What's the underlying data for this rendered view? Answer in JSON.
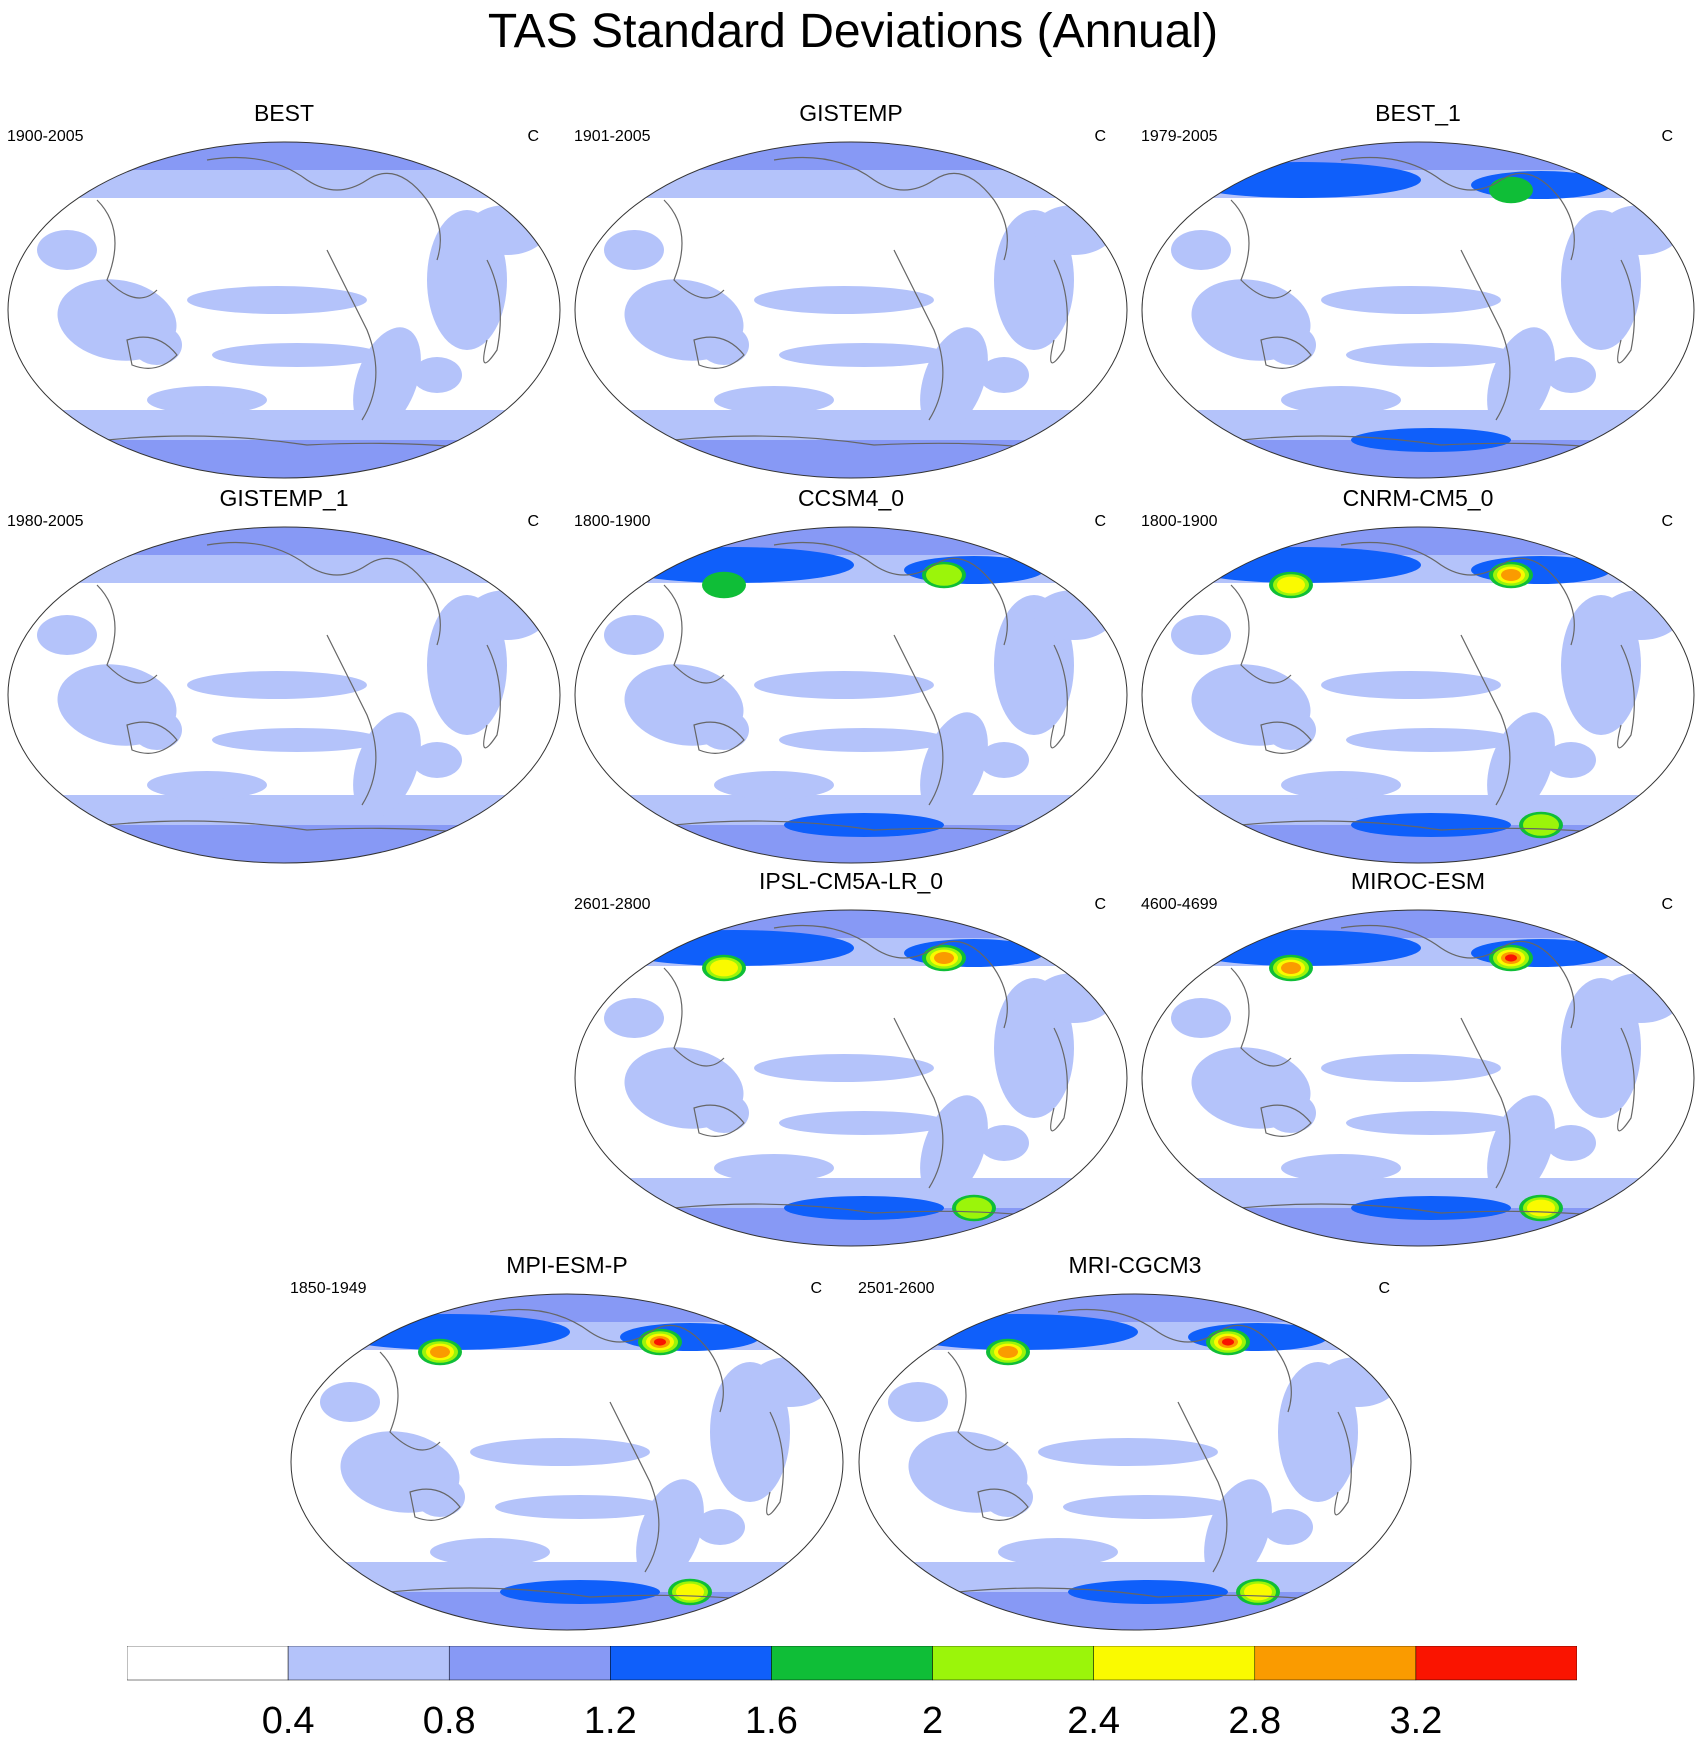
{
  "title": "TAS Standard Deviations (Annual)",
  "panels": [
    {
      "name": "BEST",
      "period": "1900-2005",
      "unit": "C",
      "max_level": 2
    },
    {
      "name": "GISTEMP",
      "period": "1901-2005",
      "unit": "C",
      "max_level": 2
    },
    {
      "name": "BEST_1",
      "period": "1979-2005",
      "unit": "C",
      "max_level": 4
    },
    {
      "name": "GISTEMP_1",
      "period": "1980-2005",
      "unit": "C",
      "max_level": 2
    },
    {
      "name": "CCSM4_0",
      "period": "1800-1900",
      "unit": "C",
      "max_level": 5
    },
    {
      "name": "CNRM-CM5_0",
      "period": "1800-1900",
      "unit": "C",
      "max_level": 7
    },
    {
      "name": "IPSL-CM5A-LR_0",
      "period": "2601-2800",
      "unit": "C",
      "max_level": 7
    },
    {
      "name": "MIROC-ESM",
      "period": "4600-4699",
      "unit": "C",
      "max_level": 8
    },
    {
      "name": "MPI-ESM-P",
      "period": "1850-1949",
      "unit": "C",
      "max_level": 8
    },
    {
      "name": "MRI-CGCM3",
      "period": "2501-2600",
      "unit": "C",
      "max_level": 8
    }
  ],
  "colorbar": {
    "colors": [
      "#ffffff",
      "#b4c3fa",
      "#8799f5",
      "#0f5ffa",
      "#0fbe37",
      "#9bf50a",
      "#fafa00",
      "#fa9b00",
      "#fa1400"
    ],
    "labels": [
      "0.4",
      "0.8",
      "1.2",
      "1.6",
      "2",
      "2.4",
      "2.8",
      "3.2"
    ]
  }
}
